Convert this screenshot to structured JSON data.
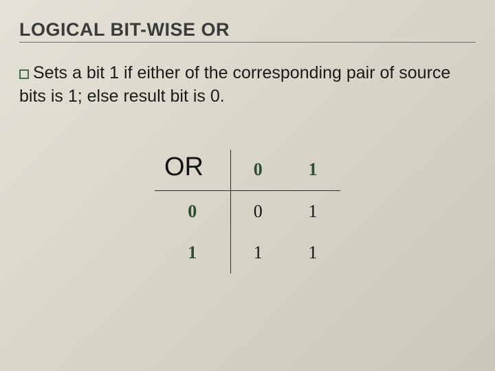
{
  "slide": {
    "title": "LOGICAL BIT-WISE OR",
    "description_pre": "Sets",
    "description_rest": " a bit 1 if either of the corresponding pair of source bits is 1; else result bit is 0.",
    "background_gradient": {
      "from": "#e4e1d6",
      "to": "#cbc8ba"
    },
    "title_color": "#3a3b3a",
    "bullet_border_color": "#4a6b4a"
  },
  "truth_table": {
    "type": "table",
    "corner_label": "OR",
    "columns": [
      "0",
      "1"
    ],
    "rows": [
      {
        "header": "0",
        "cells": [
          "0",
          "1"
        ]
      },
      {
        "header": "1",
        "cells": [
          "1",
          "1"
        ]
      }
    ],
    "header_color": "#2d4d2d",
    "cell_color": "#111111",
    "border_color": "#2a2a2a",
    "corner_fontsize": 38,
    "header_fontsize": 26,
    "cell_fontsize": 26
  }
}
